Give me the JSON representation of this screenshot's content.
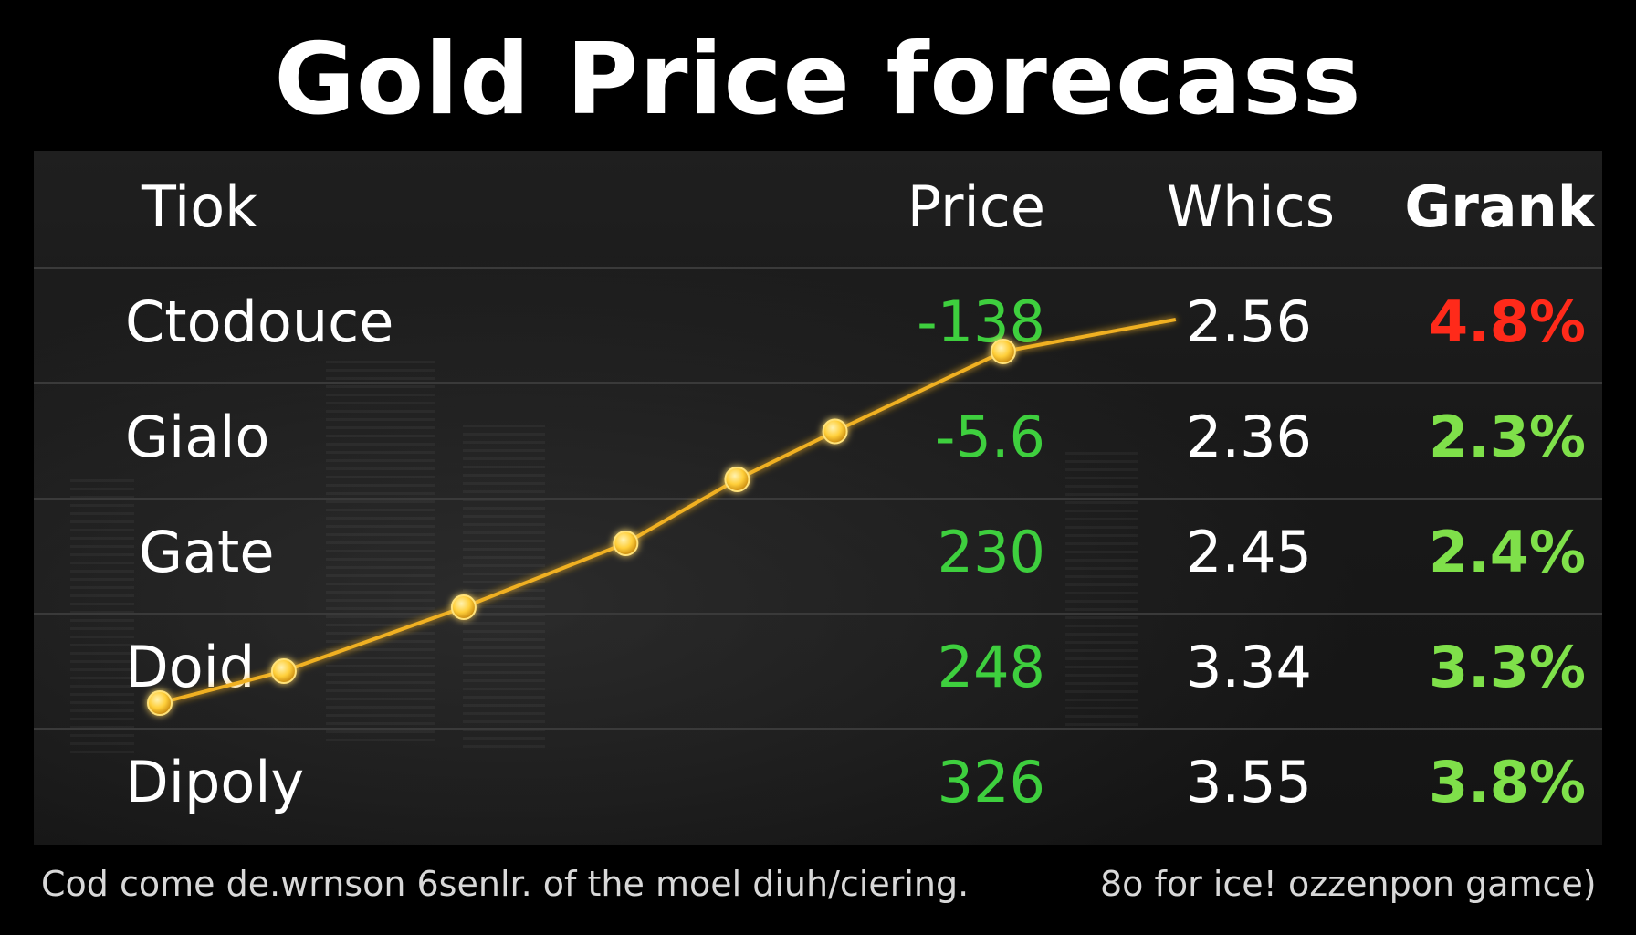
{
  "title": "Gold Price forecass",
  "table": {
    "headers": [
      "Tiok",
      "Price",
      "Whics",
      "Grank"
    ],
    "rows": [
      {
        "name": "Ctodouce",
        "price": "-138",
        "whics": "2.56",
        "grank": "4.8%",
        "price_color": "#3ecf3e",
        "grank_color": "#ff2a1a"
      },
      {
        "name": "Gialo",
        "price": "-5.6",
        "whics": "2.36",
        "grank": "2.3%",
        "price_color": "#3ecf3e",
        "grank_color": "#7fe04a"
      },
      {
        "name": "Gate",
        "price": "230",
        "whics": "2.45",
        "grank": "2.4%",
        "price_color": "#3ecf3e",
        "grank_color": "#7fe04a"
      },
      {
        "name": "Doid",
        "price": "248",
        "whics": "3.34",
        "grank": "3.3%",
        "price_color": "#3ecf3e",
        "grank_color": "#7fe04a"
      },
      {
        "name": "Dipoly",
        "price": "326",
        "whics": "3.55",
        "grank": "3.8%",
        "price_color": "#3ecf3e",
        "grank_color": "#7fe04a"
      }
    ]
  },
  "chart_data": {
    "type": "line",
    "values": [
      0,
      1,
      3,
      5,
      7,
      8.5,
      11,
      12
    ],
    "ylim": [
      0,
      12
    ],
    "line_color": "#f0b020",
    "marker_color": "#ffd24a"
  },
  "footer": {
    "left": "Cod come de.wrnson 6senlr. of the moel diuh/ciering.",
    "right": "8o for ice! ozzenpon gamce)"
  },
  "colors": {
    "background": "#000000",
    "panel": "#1b1b1b",
    "positive": "#3ecf3e",
    "negative": "#ff2a1a"
  }
}
